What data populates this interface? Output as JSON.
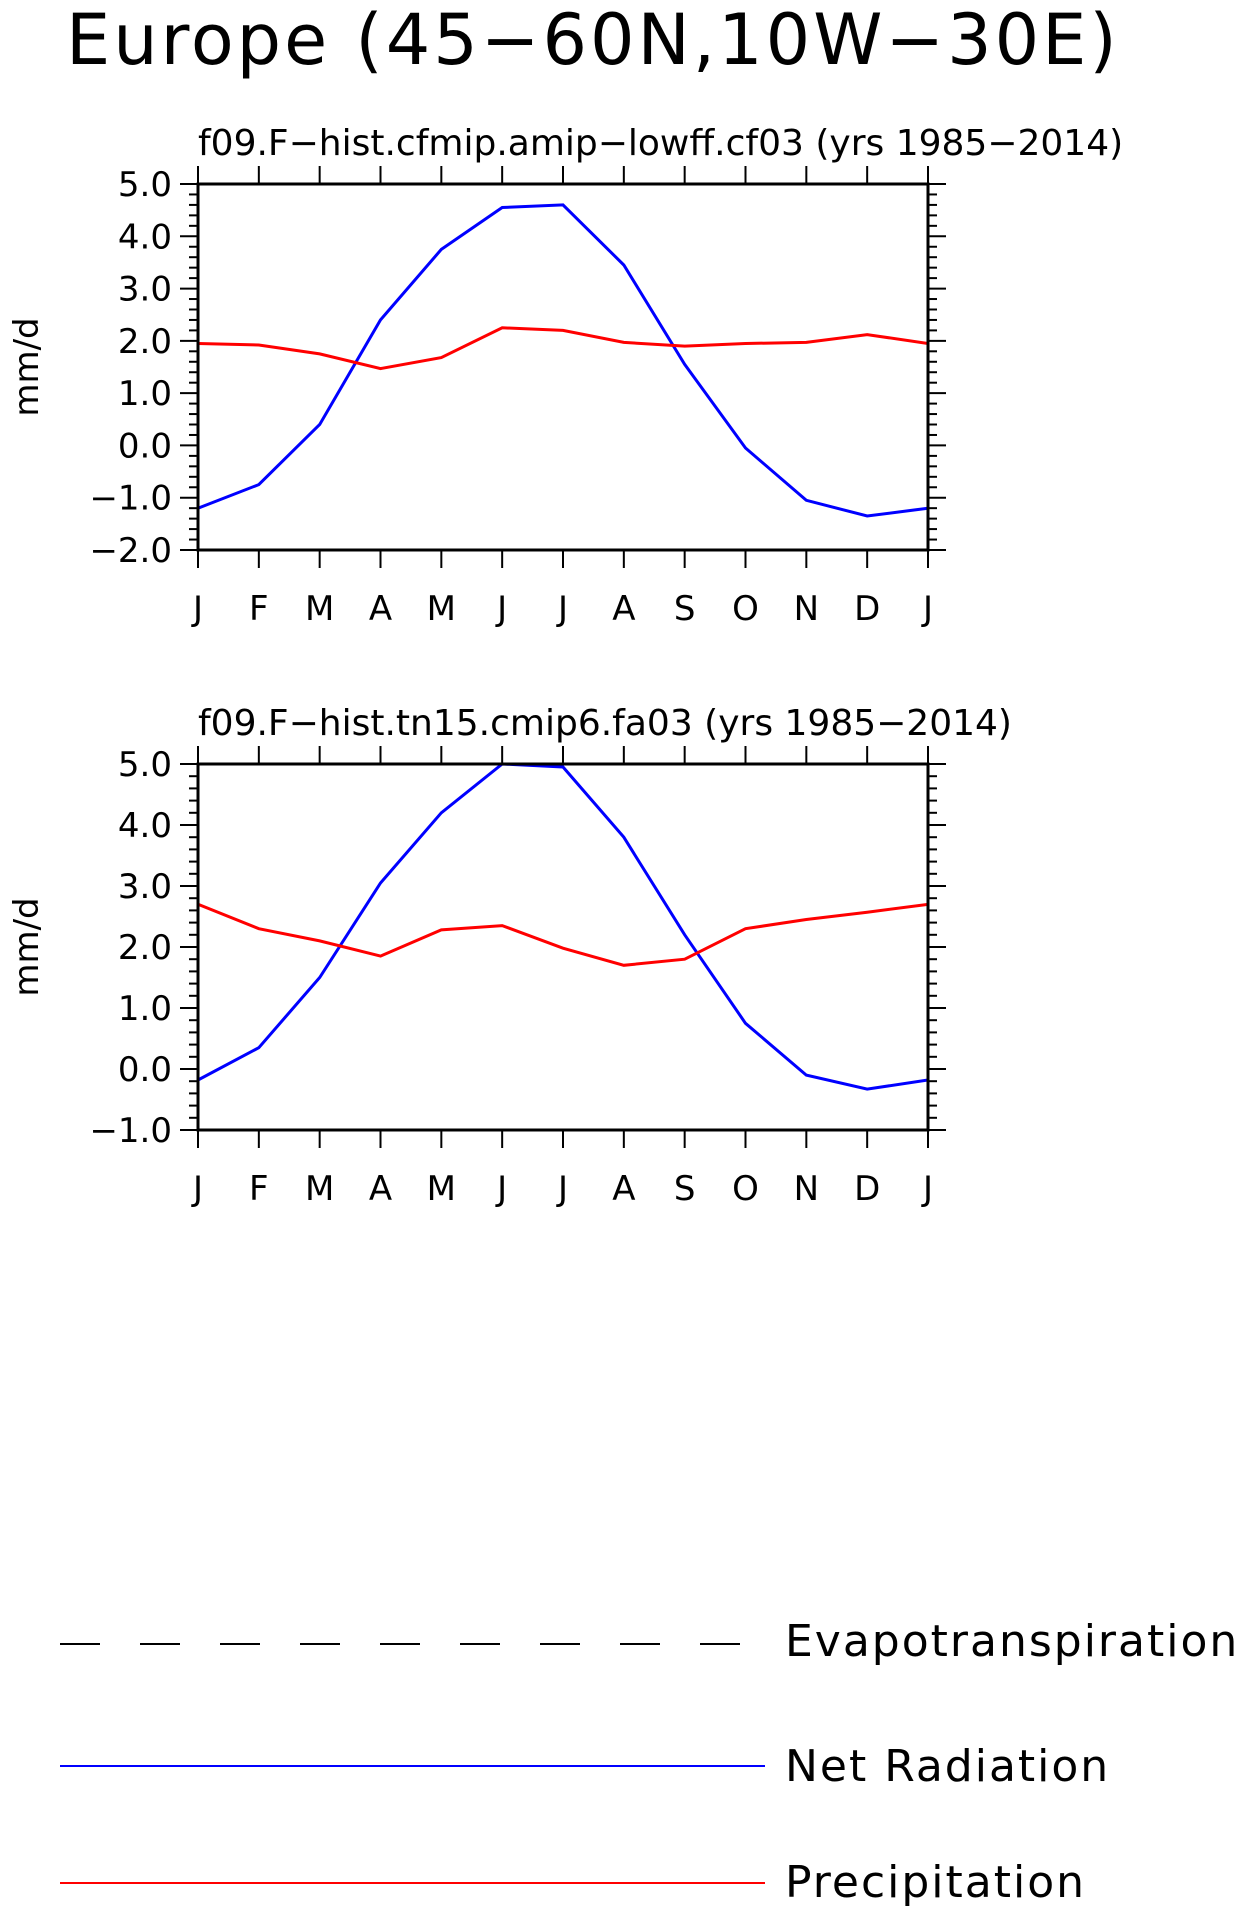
{
  "title": "Europe (45−60N,10W−30E)",
  "colors": {
    "net_radiation": "#0000ff",
    "precipitation": "#ff0000",
    "evapotranspiration": "#000000"
  },
  "legend": [
    {
      "label": "Evapotranspiration",
      "color": "#000000",
      "style": "dashed"
    },
    {
      "label": "Net Radiation",
      "color": "#0000ff",
      "style": "solid"
    },
    {
      "label": "Precipitation",
      "color": "#ff0000",
      "style": "solid"
    }
  ],
  "chart_data": [
    {
      "type": "line",
      "title": "f09.F−hist.cfmip.amip−lowff.cf03 (yrs 1985−2014)",
      "ylabel": "mm/d",
      "ylim": [
        -2.0,
        5.0
      ],
      "yticks": [
        "5.0",
        "4.0",
        "3.0",
        "2.0",
        "1.0",
        "0.0",
        "−1.0",
        "−2.0"
      ],
      "categories": [
        "J",
        "F",
        "M",
        "A",
        "M",
        "J",
        "J",
        "A",
        "S",
        "O",
        "N",
        "D",
        "J"
      ],
      "series": [
        {
          "name": "Net Radiation",
          "color": "#0000ff",
          "values": [
            -1.2,
            -0.75,
            0.4,
            2.4,
            3.75,
            4.55,
            4.6,
            3.45,
            1.55,
            -0.05,
            -1.05,
            -1.35,
            -1.2
          ]
        },
        {
          "name": "Precipitation",
          "color": "#ff0000",
          "values": [
            1.95,
            1.92,
            1.75,
            1.47,
            1.68,
            2.25,
            2.2,
            1.97,
            1.9,
            1.95,
            1.97,
            2.12,
            1.95
          ]
        }
      ]
    },
    {
      "type": "line",
      "title": "f09.F−hist.tn15.cmip6.fa03 (yrs 1985−2014)",
      "ylabel": "mm/d",
      "ylim": [
        -1.0,
        5.0
      ],
      "yticks": [
        "5.0",
        "4.0",
        "3.0",
        "2.0",
        "1.0",
        "0.0",
        "−1.0"
      ],
      "categories": [
        "J",
        "F",
        "M",
        "A",
        "M",
        "J",
        "J",
        "A",
        "S",
        "O",
        "N",
        "D",
        "J"
      ],
      "series": [
        {
          "name": "Net Radiation",
          "color": "#0000ff",
          "values": [
            -0.18,
            0.35,
            1.5,
            3.05,
            4.2,
            5.0,
            4.95,
            3.8,
            2.2,
            0.75,
            -0.1,
            -0.33,
            -0.18
          ]
        },
        {
          "name": "Precipitation",
          "color": "#ff0000",
          "values": [
            2.7,
            2.3,
            2.1,
            1.85,
            2.28,
            2.35,
            1.98,
            1.7,
            1.8,
            2.3,
            2.45,
            2.57,
            2.7
          ]
        }
      ]
    }
  ]
}
